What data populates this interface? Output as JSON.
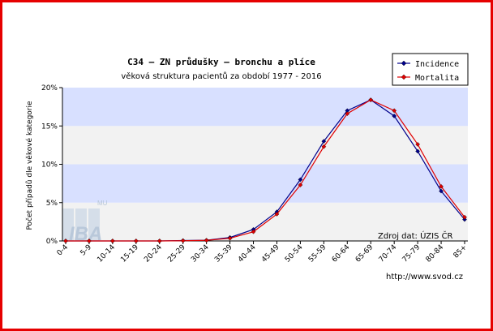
{
  "chart_data": {
    "type": "line",
    "title": "C34 – ZN průdušky – bronchu a plíce",
    "subtitle": "věková struktura pacientů za období 1977 - 2016",
    "ylabel": "Počet případů dle věkové kategorie",
    "xlabel": "",
    "ylim": [
      0,
      20
    ],
    "yticks": [
      0,
      5,
      10,
      15,
      20
    ],
    "ytick_labels": [
      "0%",
      "5%",
      "10%",
      "15%",
      "20%"
    ],
    "grid": true,
    "legend_position": "top-right",
    "categories": [
      "0-4",
      "5-9",
      "10-14",
      "15-19",
      "20-24",
      "25-29",
      "30-34",
      "35-39",
      "40-44",
      "45-49",
      "50-54",
      "55-59",
      "60-64",
      "65-69",
      "70-74",
      "75-79",
      "80-84",
      "85+"
    ],
    "series": [
      {
        "name": "Incidence",
        "color": "#00008b",
        "values": [
          0,
          0,
          0,
          0,
          0,
          0.05,
          0.1,
          0.45,
          1.5,
          3.8,
          8.0,
          13.0,
          17.0,
          18.4,
          16.3,
          11.7,
          6.5,
          2.8
        ]
      },
      {
        "name": "Mortalita",
        "color": "#e00000",
        "values": [
          0,
          0,
          0,
          0,
          0,
          0.03,
          0.08,
          0.35,
          1.2,
          3.5,
          7.3,
          12.3,
          16.6,
          18.4,
          17.0,
          12.6,
          7.1,
          3.1
        ]
      }
    ],
    "source_note": "Zdroj dat: ÚZIS ČR",
    "url_note": "http://www.svod.cz",
    "watermark": "IBA",
    "watermark_small": "MU"
  }
}
